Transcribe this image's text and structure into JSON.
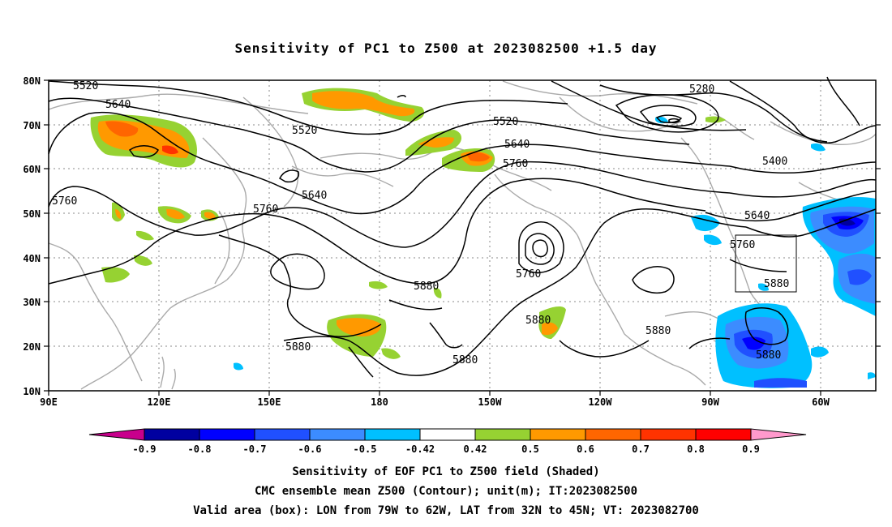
{
  "title": "Sensitivity of PC1 to Z500 at 2023082500 +1.5 day",
  "lat_ticks": [
    "80N",
    "70N",
    "60N",
    "50N",
    "40N",
    "30N",
    "20N",
    "10N"
  ],
  "lon_ticks": [
    "90E",
    "120E",
    "150E",
    "180",
    "150W",
    "120W",
    "90W",
    "60W"
  ],
  "contour_labels": [
    "5520",
    "5640",
    "5520",
    "5520",
    "5640",
    "5760",
    "5640",
    "5760",
    "5760",
    "5760",
    "5880",
    "5880",
    "5880",
    "5880",
    "5280",
    "5400",
    "5640",
    "5760",
    "5880",
    "5880",
    "5880"
  ],
  "colorbar": {
    "labels": [
      "-0.9",
      "-0.8",
      "-0.7",
      "-0.6",
      "-0.5",
      "-0.42",
      "0.42",
      "0.5",
      "0.6",
      "0.7",
      "0.8",
      "0.9"
    ],
    "colors": [
      "#c8008c",
      "#0000a0",
      "#0000ff",
      "#2050ff",
      "#3c8cff",
      "#00c0ff",
      "#ffffff",
      "#96d232",
      "#ff9900",
      "#ff6600",
      "#ff3300",
      "#ff0000",
      "#ff99cc"
    ]
  },
  "valid_box": {
    "lon_min": -79,
    "lon_max": -62,
    "lat_min": 32,
    "lat_max": 45
  },
  "captions": [
    "Sensitivity of EOF PC1 to Z500 field (Shaded)",
    "CMC ensemble mean Z500 (Contour); unit(m); IT:2023082500",
    "Valid area (box): LON from 79W to 62W, LAT from 32N to 45N; VT: 2023082700"
  ]
}
